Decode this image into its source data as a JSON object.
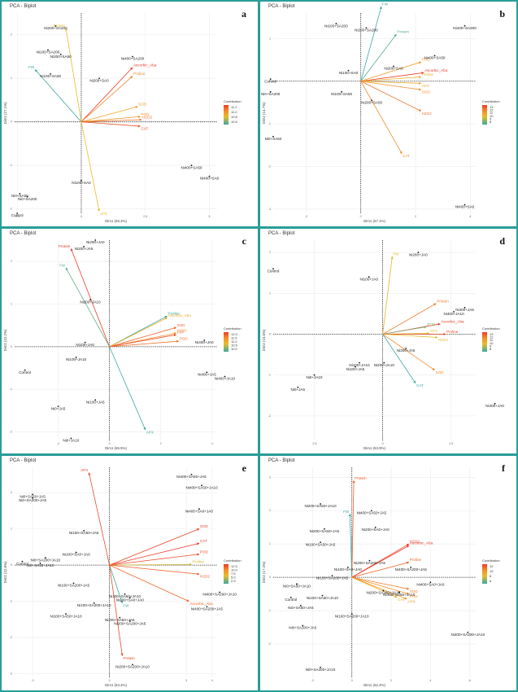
{
  "chart_data": [
    {
      "type": "scatter",
      "panel": "a",
      "title": "PCA - Biplot",
      "xlabel": "Dim1 (65.2%)",
      "ylabel": "Dim2 (27.1%)",
      "xlim": [
        -2.6,
        5.3
      ],
      "ylim": [
        -2.1,
        2.5
      ],
      "xticks": [
        -2.5,
        0.0,
        2.5,
        5.0
      ],
      "yticks": [
        -2,
        -1,
        0,
        1,
        2
      ],
      "legend": {
        "title": "Contribution",
        "ticks": [
          "11.2",
          "11.0",
          "10.8",
          "10.6"
        ],
        "position": "right"
      },
      "observations": [
        {
          "label": "Ni200+SA200",
          "x": -1.0,
          "y": 2.2
        },
        {
          "label": "Ni100+SA200",
          "x": -1.3,
          "y": 1.65
        },
        {
          "label": "Ni200+SA50",
          "x": -0.8,
          "y": 1.55
        },
        {
          "label": "Ni100+SA50",
          "x": -1.2,
          "y": 1.1
        },
        {
          "label": "Ni400+SA200",
          "x": 2.0,
          "y": 1.5
        },
        {
          "label": "Ni200+SA0",
          "x": 0.7,
          "y": 1.0
        },
        {
          "label": "Ni400+SA50",
          "x": 4.3,
          "y": -1.0
        },
        {
          "label": "Ni400+SA0",
          "x": 5.0,
          "y": -1.25
        },
        {
          "label": "Ni100+SA0",
          "x": 0.0,
          "y": -1.35
        },
        {
          "label": "Ni0+SA50",
          "x": -2.4,
          "y": -1.65
        },
        {
          "label": "Ni0+SA200",
          "x": -2.1,
          "y": -1.72
        },
        {
          "label": "Control",
          "x": -2.5,
          "y": -2.1
        }
      ],
      "variables": [
        {
          "label": "Protein",
          "x": -0.6,
          "y": 2.15,
          "contrib": 10.9
        },
        {
          "label": "FW",
          "x": -1.8,
          "y": 1.2,
          "contrib": 10.6
        },
        {
          "label": "Ascorbic_Aba",
          "x": 2.0,
          "y": 1.25,
          "contrib": 11.25
        },
        {
          "label": "Proline",
          "x": 2.0,
          "y": 1.05,
          "contrib": 11.1
        },
        {
          "label": "SOD",
          "x": 2.2,
          "y": 0.35,
          "contrib": 11.0
        },
        {
          "label": "POD",
          "x": 2.3,
          "y": 0.12,
          "contrib": 11.05
        },
        {
          "label": "H2O2",
          "x": 2.35,
          "y": 0.05,
          "contrib": 11.15
        },
        {
          "label": "CAT",
          "x": 2.3,
          "y": -0.1,
          "contrib": 11.2
        },
        {
          "label": "APX",
          "x": 0.7,
          "y": -2.05,
          "contrib": 10.9
        }
      ]
    },
    {
      "type": "scatter",
      "panel": "b",
      "title": "PCA - Biplot",
      "xlabel": "Dim1 (67.1%)",
      "ylabel": "Dim2 (14.7%)",
      "xlim": [
        -3.2,
        4.2
      ],
      "ylim": [
        -3.1,
        1.6
      ],
      "xticks": [
        -2,
        0,
        2,
        4
      ],
      "yticks": [
        -3,
        -2,
        -1,
        0,
        1
      ],
      "legend": {
        "title": "Contribution",
        "ticks": [
          "13",
          "12",
          "11",
          "10",
          "9",
          "8"
        ],
        "position": "right"
      },
      "observations": [
        {
          "label": "Ni100+SA200",
          "x": -0.9,
          "y": 1.35
        },
        {
          "label": "Ni200+SA200",
          "x": 0.2,
          "y": 1.25
        },
        {
          "label": "Ni400+SA200",
          "x": 3.8,
          "y": 1.3
        },
        {
          "label": "Ni400+SA50",
          "x": 2.7,
          "y": 0.6
        },
        {
          "label": "Ni200+SA0",
          "x": 1.2,
          "y": 0.35
        },
        {
          "label": "Ni100+SA0",
          "x": -0.45,
          "y": 0.25
        },
        {
          "label": "Control",
          "x": -3.3,
          "y": 0.05
        },
        {
          "label": "Ni0+SA200",
          "x": -3.3,
          "y": -0.25
        },
        {
          "label": "Ni100+SA50",
          "x": -0.7,
          "y": -0.25
        },
        {
          "label": "Ni200+SA50",
          "x": 0.4,
          "y": -0.45
        },
        {
          "label": "Ni0+SA50",
          "x": -3.2,
          "y": -1.3
        },
        {
          "label": "Ni400+SA0",
          "x": 3.8,
          "y": -2.9
        }
      ],
      "variables": [
        {
          "label": "FW",
          "x": 0.75,
          "y": 1.75,
          "contrib": 8.5
        },
        {
          "label": "Protein",
          "x": 1.3,
          "y": 1.1,
          "contrib": 8.8
        },
        {
          "label": "POD",
          "x": 2.2,
          "y": 0.45,
          "contrib": 11.5
        },
        {
          "label": "Ascorbic_Aba",
          "x": 2.3,
          "y": 0.2,
          "contrib": 13.0
        },
        {
          "label": "Proline",
          "x": 2.2,
          "y": 0.1,
          "contrib": 11.0
        },
        {
          "label": "APX",
          "x": 2.2,
          "y": -0.05,
          "contrib": 11.2
        },
        {
          "label": "SOD",
          "x": 2.2,
          "y": -0.2,
          "contrib": 11.8
        },
        {
          "label": "H2O2",
          "x": 2.2,
          "y": -0.7,
          "contrib": 12.2
        },
        {
          "label": "CAT",
          "x": 1.5,
          "y": -1.7,
          "contrib": 11.9
        }
      ]
    },
    {
      "type": "scatter",
      "panel": "c",
      "title": "PCA - Biplot",
      "xlabel": "Dim1 (65.5%)",
      "ylabel": "Dim2 (22.2%)",
      "xlim": [
        -3.7,
        4.2
      ],
      "ylim": [
        -2.2,
        2.5
      ],
      "xticks": [
        -2,
        0,
        2,
        4
      ],
      "yticks": [
        -2,
        -1,
        0,
        1,
        2
      ],
      "legend": {
        "title": "Contribution",
        "ticks": [
          "12.0",
          "11.5",
          "11.0",
          "10.5",
          "10.0"
        ],
        "position": "right"
      },
      "observations": [
        {
          "label": "Ni200+JA0",
          "x": -0.55,
          "y": 2.5
        },
        {
          "label": "Ni200+JA5",
          "x": -1.0,
          "y": 2.35
        },
        {
          "label": "Ni200+JA10",
          "x": -0.75,
          "y": 1.1
        },
        {
          "label": "Ni100+JA0",
          "x": -0.95,
          "y": 0.1
        },
        {
          "label": "Ni400+JA0",
          "x": 3.7,
          "y": 0.15
        },
        {
          "label": "Ni100+JA10",
          "x": -1.3,
          "y": -0.25
        },
        {
          "label": "Control",
          "x": -3.3,
          "y": -0.55
        },
        {
          "label": "Ni400+JA5",
          "x": 3.8,
          "y": -0.6
        },
        {
          "label": "Ni400+JA10",
          "x": 4.5,
          "y": -0.7
        },
        {
          "label": "Ni100+JA5",
          "x": -0.55,
          "y": -1.25
        },
        {
          "label": "Ni0+JA5",
          "x": -2.0,
          "y": -1.4
        },
        {
          "label": "Ni0+JA10",
          "x": -1.5,
          "y": -2.15
        }
      ],
      "variables": [
        {
          "label": "Protein",
          "x": -1.5,
          "y": 2.3,
          "contrib": 12.0
        },
        {
          "label": "FW",
          "x": -1.7,
          "y": 1.85,
          "contrib": 10.4
        },
        {
          "label": "Proline",
          "x": 2.25,
          "y": 0.72,
          "contrib": 10.2
        },
        {
          "label": "Ascorbic_Aba",
          "x": 2.25,
          "y": 0.68,
          "contrib": 11.2
        },
        {
          "label": "SOD",
          "x": 2.6,
          "y": 0.45,
          "contrib": 11.8
        },
        {
          "label": "H2O2",
          "x": 2.6,
          "y": 0.32,
          "contrib": 11.5
        },
        {
          "label": "CAT",
          "x": 2.6,
          "y": 0.28,
          "contrib": 11.9
        },
        {
          "label": "POD",
          "x": 2.7,
          "y": 0.13,
          "contrib": 11.7
        },
        {
          "label": "APX",
          "x": 1.4,
          "y": -1.95,
          "contrib": 10.2
        }
      ]
    },
    {
      "type": "scatter",
      "panel": "d",
      "title": "PCA - Biplot",
      "xlabel": "Dim1 (63.9%)",
      "ylabel": "Dim2 (15.5%)",
      "xlim": [
        -4.0,
        3.4
      ],
      "ylim": [
        -2.6,
        2.3
      ],
      "xticks": [
        -2.5,
        0.0,
        2.5
      ],
      "yticks": [
        -2,
        -1,
        0,
        1,
        2
      ],
      "legend": {
        "title": "Contribution",
        "ticks": [
          "13",
          "12",
          "11",
          "10",
          "9",
          "8"
        ],
        "position": "right"
      },
      "observations": [
        {
          "label": "Ni200+JA0",
          "x": 1.3,
          "y": 2.0
        },
        {
          "label": "Control",
          "x": -4.0,
          "y": 1.6
        },
        {
          "label": "Ni100+JA0",
          "x": -0.5,
          "y": 1.4
        },
        {
          "label": "Ni400+JA5",
          "x": 3.0,
          "y": 0.65
        },
        {
          "label": "Ni400+JA10",
          "x": 2.6,
          "y": 0.55
        },
        {
          "label": "Ni200+JA5",
          "x": 0.85,
          "y": -0.35
        },
        {
          "label": "Ni100+JA10",
          "x": -0.85,
          "y": -0.7
        },
        {
          "label": "Ni200+JA10",
          "x": 0.05,
          "y": -0.7
        },
        {
          "label": "Ni100+JA5",
          "x": -1.0,
          "y": -0.8
        },
        {
          "label": "Ni0+JA10",
          "x": -2.5,
          "y": -1.0
        },
        {
          "label": "Ni0+JA5",
          "x": -3.1,
          "y": -1.3
        },
        {
          "label": "Ni400+JA0",
          "x": 4.1,
          "y": -1.7
        }
      ],
      "variables": [
        {
          "label": "FW",
          "x": 0.35,
          "y": 1.9,
          "contrib": 11.0
        },
        {
          "label": "Protein",
          "x": 1.95,
          "y": 0.75,
          "contrib": 12.2
        },
        {
          "label": "Ascorbic_Aba",
          "x": 2.1,
          "y": 0.25,
          "contrib": 13.0
        },
        {
          "label": "POD",
          "x": 1.6,
          "y": 0.18,
          "contrib": 9.5
        },
        {
          "label": "APX",
          "x": 1.7,
          "y": 0.02,
          "contrib": 10.8
        },
        {
          "label": "Proline",
          "x": 2.3,
          "y": 0.0,
          "contrib": 12.8
        },
        {
          "label": "H2O2",
          "x": 2.0,
          "y": -0.08,
          "contrib": 10.6
        },
        {
          "label": "SOD",
          "x": 1.9,
          "y": -0.88,
          "contrib": 12.0
        },
        {
          "label": "CAT",
          "x": 1.2,
          "y": -1.2,
          "contrib": 8.8
        }
      ]
    },
    {
      "type": "scatter",
      "panel": "e",
      "title": "PCA - Biplot",
      "xlabel": "Dim1 (54.4%)",
      "ylabel": "Dim2 (22.8%)",
      "xlim": [
        -3.7,
        4.2
      ],
      "ylim": [
        -3.1,
        2.7
      ],
      "xticks": [
        -3,
        0,
        3,
        4
      ],
      "yticks": [
        -3,
        -2,
        -1,
        0,
        1,
        2
      ],
      "legend": {
        "title": "Contribution",
        "ticks": [
          "12.5",
          "10.0",
          "7.5",
          "5.0",
          "2.5"
        ],
        "position": "right"
      },
      "observations": [
        {
          "label": "Ni400+SA50+JA5",
          "x": 3.2,
          "y": 2.5
        },
        {
          "label": "Ni400+SA50+JA10",
          "x": 3.6,
          "y": 2.2
        },
        {
          "label": "Ni0+SA50+JA5",
          "x": -3.0,
          "y": 1.95
        },
        {
          "label": "Ni0+SA200+JA5",
          "x": -3.0,
          "y": 1.85
        },
        {
          "label": "Ni400+SA0+JA0",
          "x": 3.5,
          "y": 1.55
        },
        {
          "label": "Ni100+SA50+JA5",
          "x": -1.0,
          "y": 0.95
        },
        {
          "label": "Ni100+SA0+JA0",
          "x": -1.3,
          "y": 0.35
        },
        {
          "label": "Control",
          "x": -3.4,
          "y": 0.1
        },
        {
          "label": "Ni0+SA200+JA10",
          "x": -2.5,
          "y": 0.2
        },
        {
          "label": "Ni0+SA50+JA10",
          "x": -2.7,
          "y": 0.05
        },
        {
          "label": "Ni100+SA200+JA5",
          "x": -1.4,
          "y": -0.5
        },
        {
          "label": "Ni200+SA50+JA10",
          "x": 0.6,
          "y": -0.8
        },
        {
          "label": "Ni200+SA0+JA0",
          "x": 0.8,
          "y": -0.9
        },
        {
          "label": "Ni400+SA200+JA10",
          "x": 4.3,
          "y": -0.75
        },
        {
          "label": "Ni100+SA200+JA10",
          "x": -0.6,
          "y": -1.05
        },
        {
          "label": "Ni400+SA200+JA5",
          "x": 3.8,
          "y": -1.15
        },
        {
          "label": "Ni100+SA50+JA10",
          "x": -1.7,
          "y": -1.35
        },
        {
          "label": "Ni200+SA50+JA5",
          "x": 0.4,
          "y": -1.45
        },
        {
          "label": "Ni200+SA200+JA5",
          "x": 0.8,
          "y": -1.55
        },
        {
          "label": "Ni200+SA200+JA10",
          "x": 0.9,
          "y": -2.75
        }
      ],
      "variables": [
        {
          "label": "APX",
          "x": -0.8,
          "y": 2.55,
          "contrib": 12.0
        },
        {
          "label": "SOD",
          "x": 3.5,
          "y": 1.0,
          "contrib": 12.2
        },
        {
          "label": "CAT",
          "x": 3.5,
          "y": 0.6,
          "contrib": 12.4
        },
        {
          "label": "POD",
          "x": 3.5,
          "y": 0.3,
          "contrib": 12.0
        },
        {
          "label": "Proline",
          "x": 3.2,
          "y": 0.02,
          "contrib": 6.5
        },
        {
          "label": "H2O2",
          "x": 3.5,
          "y": -0.25,
          "contrib": 11.5
        },
        {
          "label": "Ascorbic_Aba",
          "x": 3.1,
          "y": -1.0,
          "contrib": 11.0
        },
        {
          "label": "FW",
          "x": 0.5,
          "y": -1.05,
          "contrib": 2.5
        },
        {
          "label": "Protein",
          "x": 0.5,
          "y": -2.5,
          "contrib": 12.0
        }
      ]
    },
    {
      "type": "scatter",
      "panel": "f",
      "title": "PCA - Biplot",
      "xlabel": "Dim1 (62.4%)",
      "ylabel": "Dim2 (17.3%)",
      "xlim": [
        -4.0,
        6.3
      ],
      "ylim": [
        -3.0,
        3.3
      ],
      "xticks": [
        -2,
        0,
        2,
        4,
        6
      ],
      "yticks": [
        -2,
        -1,
        0,
        1,
        2,
        3
      ],
      "legend": {
        "title": "Contribution",
        "ticks": [
          "12",
          "10",
          "8",
          "6"
        ],
        "position": "right"
      },
      "observations": [
        {
          "label": "Ni200+SA50+JA10",
          "x": -1.6,
          "y": 2.2
        },
        {
          "label": "Ni400+SA50+JA5",
          "x": 1.0,
          "y": 2.0
        },
        {
          "label": "Ni200+SA0+JA0",
          "x": 1.2,
          "y": 1.5
        },
        {
          "label": "Ni200+SA50+JA5",
          "x": -1.4,
          "y": 1.45
        },
        {
          "label": "Ni100+SA50+JA5",
          "x": -1.6,
          "y": 1.05
        },
        {
          "label": "Ni200+SA200+JA5",
          "x": 0.9,
          "y": 0.5
        },
        {
          "label": "Ni100+SA0+JA0",
          "x": -0.2,
          "y": 0.3
        },
        {
          "label": "Ni400+SA200+JA5",
          "x": 3.0,
          "y": 0.3
        },
        {
          "label": "Ni100+SA200+JA5",
          "x": -1.0,
          "y": 0.05
        },
        {
          "label": "Ni0+SA50+JA10",
          "x": -2.8,
          "y": -0.2
        },
        {
          "label": "Ni400+SA0+JA0",
          "x": 4.0,
          "y": -0.15
        },
        {
          "label": "Ni200+SA200+JA10",
          "x": 1.6,
          "y": -0.4
        },
        {
          "label": "Ni400+SA50+JA10",
          "x": 2.4,
          "y": -0.45
        },
        {
          "label": "Control",
          "x": -3.1,
          "y": -0.6
        },
        {
          "label": "Ni100+SA50+JA10",
          "x": -1.5,
          "y": -0.55
        },
        {
          "label": "Ni0+SA50+JA5",
          "x": -2.6,
          "y": -0.85
        },
        {
          "label": "Ni100+SA200+JA10",
          "x": 0.0,
          "y": -1.1
        },
        {
          "label": "Ni0+SA200+JA5",
          "x": -2.5,
          "y": -1.45
        },
        {
          "label": "Ni400+SA200+JA10",
          "x": 5.9,
          "y": -1.65
        },
        {
          "label": "Ni0+SA200+JA10",
          "x": -1.6,
          "y": -2.7
        }
      ],
      "variables": [
        {
          "label": "Protein",
          "x": 0.1,
          "y": 2.9,
          "contrib": 11.5
        },
        {
          "label": "FW",
          "x": -0.1,
          "y": 1.9,
          "contrib": 6.0
        },
        {
          "label": "H2O2",
          "x": 2.9,
          "y": 1.0,
          "contrib": 12.0
        },
        {
          "label": "Ascorbic_Aba",
          "x": 2.9,
          "y": 0.95,
          "contrib": 12.2
        },
        {
          "label": "Proline",
          "x": 2.9,
          "y": 0.45,
          "contrib": 11.5
        },
        {
          "label": "SOD",
          "x": 2.9,
          "y": -0.35,
          "contrib": 11.0
        },
        {
          "label": "POD",
          "x": 2.9,
          "y": -0.5,
          "contrib": 10.5
        },
        {
          "label": "CAT",
          "x": 2.3,
          "y": -0.6,
          "contrib": 9.5
        },
        {
          "label": "APX",
          "x": 2.8,
          "y": -0.65,
          "contrib": 10.0
        }
      ]
    }
  ]
}
